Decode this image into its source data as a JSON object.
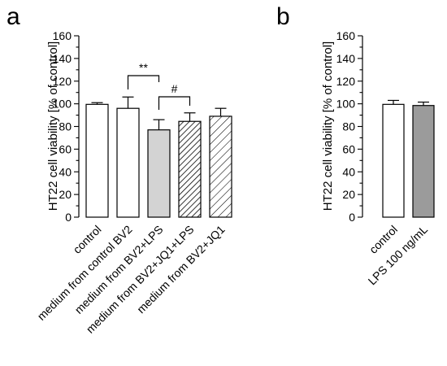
{
  "chart_data": [
    {
      "panel": "a",
      "type": "bar",
      "ylabel": "HT22 cell viability [% of control]",
      "ylim": [
        0,
        160
      ],
      "yticks": [
        0,
        10,
        20,
        30,
        40,
        50,
        60,
        70,
        80,
        90,
        100,
        110,
        120,
        130,
        140,
        150,
        160
      ],
      "ytick_labels": [
        "0",
        "20",
        "40",
        "60",
        "80",
        "100",
        "120",
        "140",
        "160"
      ],
      "categories": [
        "control",
        "medium from control BV2",
        "medium from BV2+LPS",
        "medium from BV2+JQ1+LPS",
        "medium from BV2+JQ1"
      ],
      "values": [
        99.5,
        96,
        77,
        84.5,
        89
      ],
      "errors": [
        1.5,
        10,
        9,
        7.5,
        7
      ],
      "fills": [
        "#ffffff",
        "#ffffff",
        "#d3d3d3",
        "hatch-dense",
        "hatch-light"
      ],
      "significance": [
        {
          "label": "**",
          "from": 1,
          "to": 2
        },
        {
          "label": "#",
          "from": 2,
          "to": 3
        }
      ]
    },
    {
      "panel": "b",
      "type": "bar",
      "ylabel": "HT22 cell viability [% of control]",
      "ylim": [
        0,
        160
      ],
      "yticks": [
        0,
        10,
        20,
        30,
        40,
        50,
        60,
        70,
        80,
        90,
        100,
        110,
        120,
        130,
        140,
        150,
        160
      ],
      "ytick_labels": [
        "0",
        "20",
        "40",
        "60",
        "80",
        "100",
        "120",
        "140",
        "160"
      ],
      "categories": [
        "control",
        "LPS 100 ng/mL"
      ],
      "values": [
        99.5,
        98.5
      ],
      "errors": [
        3.5,
        3
      ],
      "fills": [
        "#ffffff",
        "#9b9b9b"
      ]
    }
  ]
}
